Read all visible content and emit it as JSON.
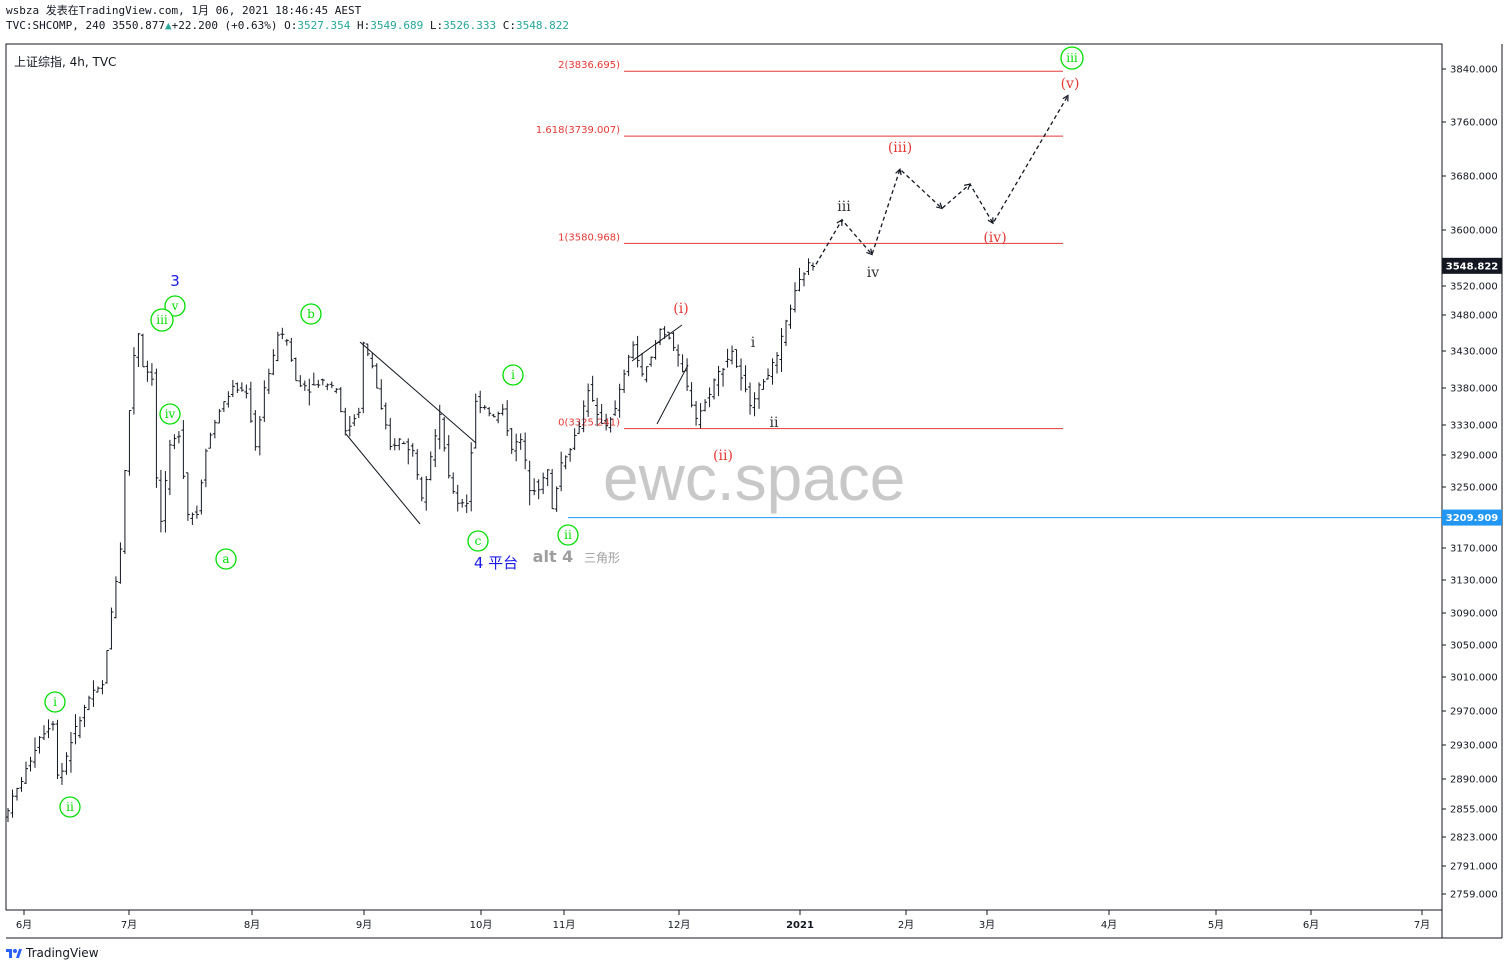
{
  "header": {
    "line1": "wsbza 发表在TradingView.com, 1月 06, 2021 18:46:45 AEST",
    "symbol": "TVC:SHCOMP, 240",
    "last": "3550.877",
    "arrow": "▲",
    "change": "+22.200 (+0.63%)",
    "o_label": "O:",
    "o_val": "3527.354",
    "h_label": "H:",
    "h_val": "3549.689",
    "l_label": "L:",
    "l_val": "3526.333",
    "c_label": "C:",
    "c_val": "3548.822"
  },
  "chart_title": "上证综指, 4h, TVC",
  "watermark": "ewc.space",
  "footer": {
    "brand": "TradingView",
    "logo_icon": "tradingview-logo-icon"
  },
  "colors": {
    "axis": "#131722",
    "fib": "#e53935",
    "green": "#00e600",
    "blue": "#1a1ae6",
    "cyan_line": "#2196f3",
    "price_bg": "#131722",
    "cyan_bg": "#2196f3",
    "watermark": "#c8c8c8",
    "grey_text": "#9e9e9e"
  },
  "chart_data": {
    "type": "ohlc",
    "title": "上证综指, 4h, TVC",
    "y_ticks": [
      3840,
      3760,
      3680,
      3600,
      3520,
      3480,
      3430,
      3380,
      3330,
      3290,
      3250,
      3170,
      3130,
      3090,
      3050,
      3010,
      2970,
      2930,
      2890,
      2855,
      2823,
      2791,
      2759
    ],
    "y_tick_labels": [
      "3840.000",
      "3760.000",
      "3680.000",
      "3600.000",
      "3520.000",
      "3480.000",
      "3430.000",
      "3380.000",
      "3330.000",
      "3290.000",
      "3250.000",
      "3170.000",
      "3130.000",
      "3090.000",
      "3050.000",
      "3010.000",
      "2970.000",
      "2930.000",
      "2890.000",
      "2855.000",
      "2823.000",
      "2791.000",
      "2759.000"
    ],
    "x_tick_labels": [
      "6月",
      "7月",
      "8月",
      "9月",
      "10月",
      "11月",
      "12月",
      "2021",
      "2月",
      "3月",
      "4月",
      "5月",
      "6月",
      "7月"
    ],
    "last_price": "3548.822",
    "horizontal_line_price": "3209.909",
    "fib_levels": [
      {
        "label": "2(3836.695)",
        "value": 3836.695
      },
      {
        "label": "1.618(3739.007)",
        "value": 3739.007
      },
      {
        "label": "1(3580.968)",
        "value": 3580.968
      },
      {
        "label": "0(3325.241)",
        "value": 3325.241
      }
    ],
    "series_path": [
      [
        0,
        2845
      ],
      [
        5,
        2900
      ],
      [
        8,
        2940
      ],
      [
        11,
        2958
      ],
      [
        12,
        2895
      ],
      [
        13,
        2900
      ],
      [
        15,
        2935
      ],
      [
        19,
        2985
      ],
      [
        22,
        3000
      ],
      [
        24,
        3090
      ],
      [
        26,
        3170
      ],
      [
        27,
        3270
      ],
      [
        28,
        3350
      ],
      [
        29,
        3425
      ],
      [
        30,
        3455
      ],
      [
        31,
        3410
      ],
      [
        33,
        3395
      ],
      [
        34,
        3260
      ],
      [
        35,
        3205
      ],
      [
        37,
        3300
      ],
      [
        39,
        3320
      ],
      [
        41,
        3215
      ],
      [
        43,
        3215
      ],
      [
        45,
        3300
      ],
      [
        48,
        3350
      ],
      [
        51,
        3380
      ],
      [
        54,
        3375
      ],
      [
        56,
        3300
      ],
      [
        58,
        3380
      ],
      [
        60,
        3420
      ],
      [
        61,
        3455
      ],
      [
        63,
        3445
      ],
      [
        65,
        3390
      ],
      [
        68,
        3380
      ],
      [
        71,
        3390
      ],
      [
        74,
        3380
      ],
      [
        76,
        3320
      ],
      [
        79,
        3350
      ],
      [
        80,
        3440
      ],
      [
        82,
        3410
      ],
      [
        84,
        3350
      ],
      [
        86,
        3300
      ],
      [
        88,
        3310
      ],
      [
        91,
        3295
      ],
      [
        93,
        3240
      ],
      [
        95,
        3290
      ],
      [
        97,
        3340
      ],
      [
        99,
        3260
      ],
      [
        101,
        3230
      ],
      [
        103,
        3230
      ],
      [
        105,
        3360
      ],
      [
        107,
        3355
      ],
      [
        109,
        3340
      ],
      [
        111,
        3350
      ],
      [
        113,
        3300
      ],
      [
        115,
        3310
      ],
      [
        117,
        3250
      ],
      [
        119,
        3250
      ],
      [
        121,
        3270
      ],
      [
        122,
        3220
      ],
      [
        124,
        3280
      ],
      [
        126,
        3300
      ],
      [
        128,
        3330
      ],
      [
        130,
        3380
      ],
      [
        132,
        3340
      ],
      [
        134,
        3330
      ],
      [
        136,
        3350
      ],
      [
        138,
        3400
      ],
      [
        140,
        3440
      ],
      [
        142,
        3395
      ],
      [
        144,
        3420
      ],
      [
        146,
        3460
      ],
      [
        148,
        3450
      ],
      [
        150,
        3420
      ],
      [
        152,
        3380
      ],
      [
        154,
        3340
      ],
      [
        156,
        3360
      ],
      [
        158,
        3390
      ],
      [
        160,
        3410
      ],
      [
        162,
        3430
      ],
      [
        164,
        3390
      ],
      [
        166,
        3360
      ],
      [
        168,
        3380
      ],
      [
        170,
        3400
      ],
      [
        172,
        3420
      ],
      [
        174,
        3470
      ],
      [
        176,
        3510
      ],
      [
        178,
        3540
      ],
      [
        179,
        3550
      ]
    ],
    "projection_path": [
      [
        3551
      ],
      [
        3615
      ],
      [
        3565
      ],
      [
        3690
      ],
      [
        3632
      ],
      [
        3668
      ],
      [
        3610
      ],
      [
        3800
      ]
    ],
    "wave_labels": [
      {
        "text": "3",
        "color": "blue"
      },
      {
        "text": "v",
        "color": "green",
        "circled": true
      },
      {
        "text": "iii",
        "color": "green",
        "circled": true
      },
      {
        "text": "iv",
        "color": "green",
        "circled": true
      },
      {
        "text": "i",
        "color": "green",
        "circled": true
      },
      {
        "text": "ii",
        "color": "green",
        "circled": true
      },
      {
        "text": "a",
        "color": "green",
        "circled": true
      },
      {
        "text": "b",
        "color": "green",
        "circled": true
      },
      {
        "text": "c",
        "color": "green",
        "circled": true
      },
      {
        "text": "4 平台",
        "color": "blue"
      },
      {
        "text": "i",
        "color": "green",
        "circled": true
      },
      {
        "text": "ii",
        "color": "green",
        "circled": true
      },
      {
        "text": "alt 4",
        "color": "grey"
      },
      {
        "text": "三角形",
        "color": "grey"
      },
      {
        "text": "(i)",
        "color": "red"
      },
      {
        "text": "(ii)",
        "color": "red"
      },
      {
        "text": "i",
        "color": "dark"
      },
      {
        "text": "ii",
        "color": "dark"
      },
      {
        "text": "iii",
        "color": "dark"
      },
      {
        "text": "iv",
        "color": "dark"
      },
      {
        "text": "(iii)",
        "color": "red"
      },
      {
        "text": "(iv)",
        "color": "red"
      },
      {
        "text": "(v)",
        "color": "red"
      },
      {
        "text": "iii",
        "color": "green",
        "circled": true
      }
    ]
  }
}
